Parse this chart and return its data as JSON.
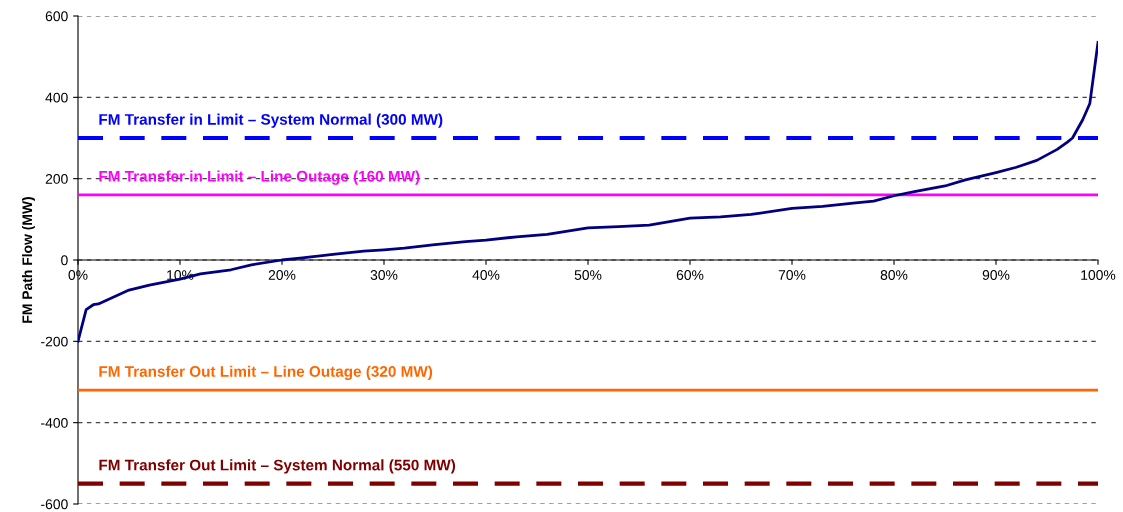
{
  "chart_data": {
    "type": "line",
    "ylabel": "FM Path Flow (MW)",
    "x": [
      0,
      0.8,
      1.5,
      2,
      5,
      7,
      10,
      12,
      15,
      17,
      20,
      22,
      25,
      28,
      30,
      32,
      35,
      38,
      40,
      43,
      46,
      50,
      53,
      56,
      60,
      63,
      66,
      70,
      73,
      76,
      78,
      80,
      82,
      85,
      87,
      90,
      92,
      94,
      96,
      97,
      97.5,
      98.5,
      99.2,
      100
    ],
    "series": [
      {
        "color": "#000080",
        "values": [
          -200,
          -122,
          -110,
          -108,
          -74,
          -62,
          -47,
          -34,
          -24,
          -12,
          0,
          5,
          14,
          22,
          25,
          29,
          38,
          45,
          49,
          57,
          63,
          79,
          82,
          86,
          103,
          106,
          112,
          127,
          132,
          140,
          145,
          158,
          168,
          182,
          197,
          215,
          228,
          245,
          272,
          290,
          300,
          345,
          385,
          535
        ]
      }
    ],
    "xlim": [
      0,
      100
    ],
    "ylim": [
      -600,
      600
    ],
    "xticks": [
      {
        "value": 0,
        "label": "0%"
      },
      {
        "value": 10,
        "label": "10%"
      },
      {
        "value": 20,
        "label": "20%"
      },
      {
        "value": 30,
        "label": "30%"
      },
      {
        "value": 40,
        "label": "40%"
      },
      {
        "value": 50,
        "label": "50%"
      },
      {
        "value": 60,
        "label": "60%"
      },
      {
        "value": 70,
        "label": "70%"
      },
      {
        "value": 80,
        "label": "80%"
      },
      {
        "value": 90,
        "label": "90%"
      },
      {
        "value": 100,
        "label": "100%"
      }
    ],
    "yticks": [
      -600,
      -400,
      -200,
      0,
      200,
      400,
      600
    ],
    "grid": "y",
    "marker": "none",
    "line_style": "solid",
    "legend": false,
    "ref_lines": [
      {
        "axis": "y",
        "value": 300,
        "label": "FM Transfer in Limit – System Normal (300 MW)",
        "color": "#0000ff",
        "line_style": "dashed"
      },
      {
        "axis": "y",
        "value": 160,
        "label": "FM Transfer in Limit – Line Outage (160 MW)",
        "color": "#ff00ff",
        "line_style": "solid"
      },
      {
        "axis": "y",
        "value": -320,
        "label": "FM Transfer Out Limit – Line Outage (320 MW)",
        "color": "#ff6600",
        "line_style": "solid"
      },
      {
        "axis": "y",
        "value": -550,
        "label": "FM Transfer Out Limit – System Normal (550 MW)",
        "color": "#800000",
        "line_style": "dashed"
      }
    ]
  }
}
